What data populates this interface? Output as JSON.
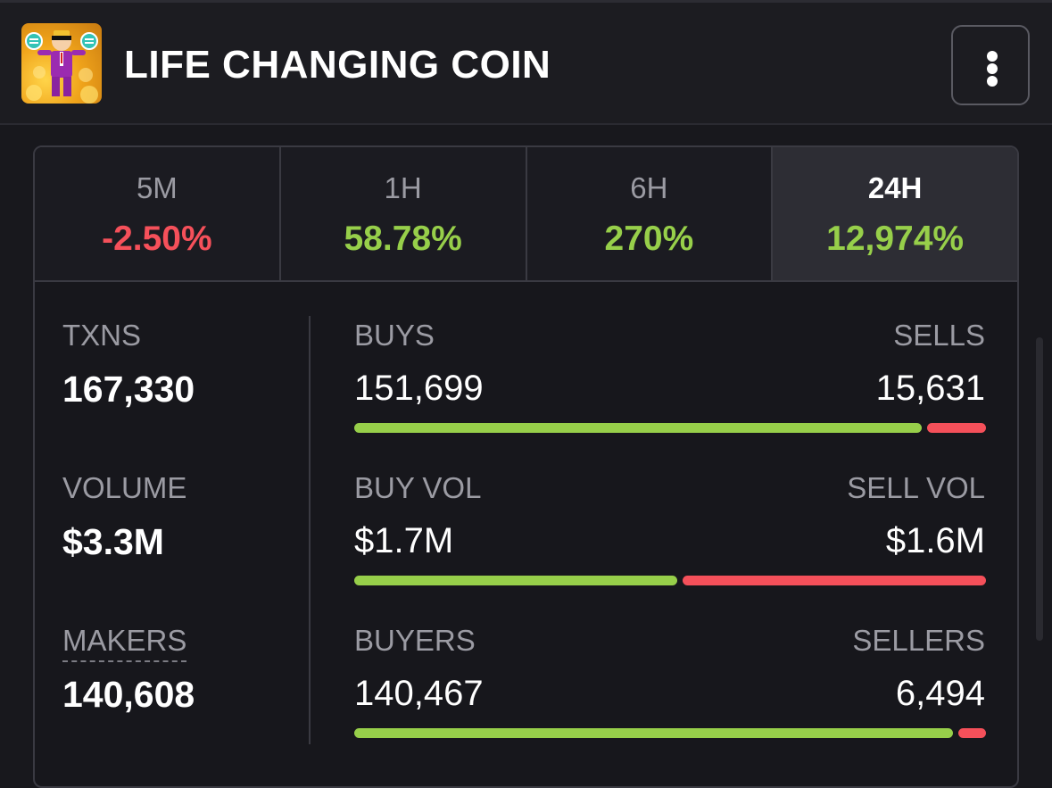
{
  "header": {
    "title": "LIFE CHANGING COIN",
    "logo_icon": "coin-mascot-logo",
    "menu_icon": "more-vertical-icon"
  },
  "timeframes": [
    {
      "label": "5M",
      "change": "-2.50%",
      "direction": "down"
    },
    {
      "label": "1H",
      "change": "58.78%",
      "direction": "up"
    },
    {
      "label": "6H",
      "change": "270%",
      "direction": "up"
    },
    {
      "label": "24H",
      "change": "12,974%",
      "direction": "up",
      "selected": true
    }
  ],
  "stats": {
    "txns": {
      "label": "TXNS",
      "value": "167,330"
    },
    "volume": {
      "label": "VOLUME",
      "value": "$3.3M"
    },
    "makers": {
      "label": "MAKERS",
      "value": "140,608"
    },
    "buys": {
      "label": "BUYS",
      "value": "151,699"
    },
    "sells": {
      "label": "SELLS",
      "value": "15,631"
    },
    "buy_vol": {
      "label": "BUY VOL",
      "value": "$1.7M"
    },
    "sell_vol": {
      "label": "SELL VOL",
      "value": "$1.6M"
    },
    "buyers": {
      "label": "BUYERS",
      "value": "140,467"
    },
    "sellers": {
      "label": "SELLERS",
      "value": "6,494"
    }
  },
  "ratios": {
    "buys_vs_sells": {
      "buy": 151699,
      "sell": 15631
    },
    "buyvol_vs_sellvol": {
      "buy": 1.7,
      "sell": 1.6
    },
    "buyers_vs_sellers": {
      "buy": 140467,
      "sell": 6494
    }
  },
  "colors": {
    "positive": "#97cf4a",
    "negative": "#f5505a",
    "muted": "#9b9ba3"
  }
}
